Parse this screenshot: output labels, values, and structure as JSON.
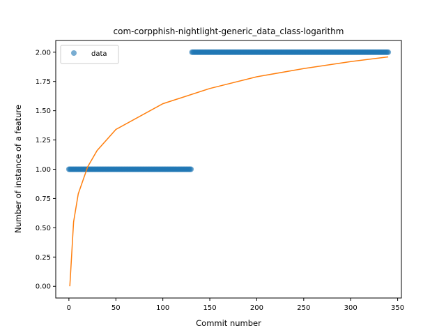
{
  "chart_data": {
    "type": "scatter",
    "title": "com-corpphish-nightlight-generic_data_class-logarithm",
    "xlabel": "Commit number",
    "ylabel": "Number of instance of a feature",
    "xlim": [
      -14,
      354
    ],
    "ylim": [
      -0.1,
      2.1
    ],
    "xticks": [
      0,
      50,
      100,
      150,
      200,
      250,
      300,
      350
    ],
    "yticks": [
      0.0,
      0.25,
      0.5,
      0.75,
      1.0,
      1.25,
      1.5,
      1.75,
      2.0
    ],
    "grid": false,
    "legend": {
      "position": "top-left",
      "entries": [
        "data"
      ]
    },
    "series": [
      {
        "name": "data",
        "kind": "points",
        "color": "#1f77b4",
        "segments": [
          {
            "x_start": 0,
            "x_end": 130,
            "y": 1.0
          },
          {
            "x_start": 131,
            "x_end": 340,
            "y": 2.0
          }
        ]
      },
      {
        "kind": "line",
        "color": "#ff7f0e",
        "model": "logarithmic fit",
        "x": [
          1,
          5,
          10,
          20,
          30,
          50,
          100,
          150,
          200,
          250,
          300,
          340
        ],
        "y": [
          0.0,
          0.55,
          0.79,
          1.02,
          1.16,
          1.34,
          1.56,
          1.69,
          1.79,
          1.86,
          1.92,
          1.96
        ]
      }
    ]
  }
}
